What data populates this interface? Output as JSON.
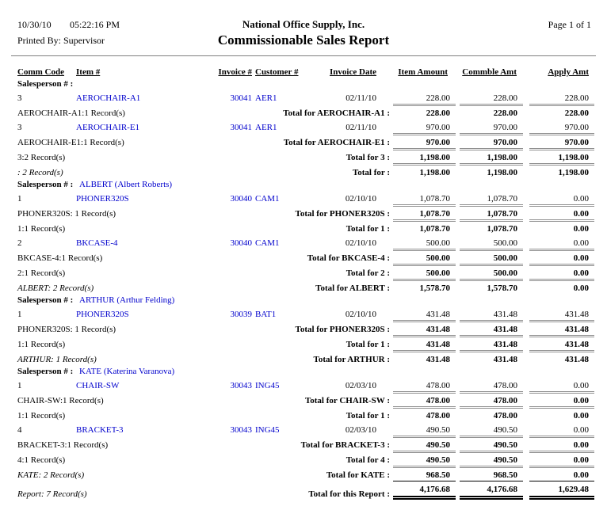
{
  "report": {
    "date": "10/30/10",
    "time": "05:22:16 PM",
    "printed_by": "Printed By: Supervisor",
    "company": "National Office Supply, Inc.",
    "title": "Commissionable Sales Report",
    "page_info": "Page 1 of 1"
  },
  "colors": {
    "link_blue": "#0000CC",
    "total_rule_gray": "#8f8f8f",
    "grand_rule_black": "#000000"
  },
  "columns": {
    "comm_code": "Comm Code",
    "item": "Item #",
    "invoice": "Invoice #",
    "customer": "Customer #",
    "invoice_date": "Invoice Date",
    "item_amount": "Item Amount",
    "commble_amt": "Commble Amt",
    "apply_amt": "Apply Amt"
  },
  "rows": [
    {
      "type": "sales",
      "label": "Salesperson # :",
      "name": ""
    },
    {
      "type": "detail",
      "comm": "3",
      "item": "AEROCHAIR-A1",
      "invoice": "30041",
      "customer": "AER1",
      "date": "02/11/10",
      "amounts": [
        "228.00",
        "228.00",
        "228.00"
      ]
    },
    {
      "type": "total",
      "record": "AEROCHAIR-A1:1 Record(s)",
      "italic": false,
      "label": "Total for AEROCHAIR-A1 :",
      "amounts": [
        "228.00",
        "228.00",
        "228.00"
      ]
    },
    {
      "type": "detail",
      "comm": "3",
      "item": "AEROCHAIR-E1",
      "invoice": "30041",
      "customer": "AER1",
      "date": "02/11/10",
      "amounts": [
        "970.00",
        "970.00",
        "970.00"
      ]
    },
    {
      "type": "total",
      "record": "AEROCHAIR-E1:1 Record(s)",
      "italic": false,
      "label": "Total for AEROCHAIR-E1 :",
      "amounts": [
        "970.00",
        "970.00",
        "970.00"
      ]
    },
    {
      "type": "total",
      "record": "3:2 Record(s)",
      "italic": false,
      "label": "Total for 3 :",
      "amounts": [
        "1,198.00",
        "1,198.00",
        "1,198.00"
      ]
    },
    {
      "type": "total",
      "record": ": 2 Record(s)",
      "italic": true,
      "label": "Total for :",
      "amounts": [
        "1,198.00",
        "1,198.00",
        "1,198.00"
      ]
    },
    {
      "type": "sales",
      "label": "Salesperson # :",
      "name": "ALBERT (Albert Roberts)"
    },
    {
      "type": "detail",
      "comm": "1",
      "item": "PHONER320S",
      "invoice": "30040",
      "customer": "CAM1",
      "date": "02/10/10",
      "amounts": [
        "1,078.70",
        "1,078.70",
        "0.00"
      ]
    },
    {
      "type": "total",
      "record": "PHONER320S: 1 Record(s)",
      "italic": false,
      "label": "Total for PHONER320S :",
      "amounts": [
        "1,078.70",
        "1,078.70",
        "0.00"
      ]
    },
    {
      "type": "total",
      "record": "1:1 Record(s)",
      "italic": false,
      "label": "Total for 1 :",
      "amounts": [
        "1,078.70",
        "1,078.70",
        "0.00"
      ]
    },
    {
      "type": "detail",
      "comm": "2",
      "item": "BKCASE-4",
      "invoice": "30040",
      "customer": "CAM1",
      "date": "02/10/10",
      "amounts": [
        "500.00",
        "500.00",
        "0.00"
      ]
    },
    {
      "type": "total",
      "record": "BKCASE-4:1 Record(s)",
      "italic": false,
      "label": "Total for BKCASE-4 :",
      "amounts": [
        "500.00",
        "500.00",
        "0.00"
      ]
    },
    {
      "type": "total",
      "record": "2:1 Record(s)",
      "italic": false,
      "label": "Total for 2 :",
      "amounts": [
        "500.00",
        "500.00",
        "0.00"
      ]
    },
    {
      "type": "total",
      "record": "ALBERT: 2 Record(s)",
      "italic": true,
      "label": "Total for ALBERT :",
      "amounts": [
        "1,578.70",
        "1,578.70",
        "0.00"
      ]
    },
    {
      "type": "sales",
      "label": "Salesperson # :",
      "name": "ARTHUR (Arthur Felding)"
    },
    {
      "type": "detail",
      "comm": "1",
      "item": "PHONER320S",
      "invoice": "30039",
      "customer": "BAT1",
      "date": "02/10/10",
      "amounts": [
        "431.48",
        "431.48",
        "431.48"
      ]
    },
    {
      "type": "total",
      "record": "PHONER320S: 1 Record(s)",
      "italic": false,
      "label": "Total for PHONER320S :",
      "amounts": [
        "431.48",
        "431.48",
        "431.48"
      ]
    },
    {
      "type": "total",
      "record": "1:1 Record(s)",
      "italic": false,
      "label": "Total for 1 :",
      "amounts": [
        "431.48",
        "431.48",
        "431.48"
      ]
    },
    {
      "type": "total",
      "record": "ARTHUR: 1 Record(s)",
      "italic": true,
      "label": "Total for ARTHUR :",
      "amounts": [
        "431.48",
        "431.48",
        "431.48"
      ]
    },
    {
      "type": "sales",
      "label": "Salesperson # :",
      "name": "KATE (Katerina Varanova)"
    },
    {
      "type": "detail",
      "comm": "1",
      "item": "CHAIR-SW",
      "invoice": "30043",
      "customer": "ING45",
      "date": "02/03/10",
      "amounts": [
        "478.00",
        "478.00",
        "0.00"
      ]
    },
    {
      "type": "total",
      "record": "CHAIR-SW:1 Record(s)",
      "italic": false,
      "label": "Total for CHAIR-SW :",
      "amounts": [
        "478.00",
        "478.00",
        "0.00"
      ]
    },
    {
      "type": "total",
      "record": "1:1 Record(s)",
      "italic": false,
      "label": "Total for 1 :",
      "amounts": [
        "478.00",
        "478.00",
        "0.00"
      ]
    },
    {
      "type": "detail",
      "comm": "4",
      "item": "BRACKET-3",
      "invoice": "30043",
      "customer": "ING45",
      "date": "02/03/10",
      "amounts": [
        "490.50",
        "490.50",
        "0.00"
      ]
    },
    {
      "type": "total",
      "record": "BRACKET-3:1 Record(s)",
      "italic": false,
      "label": "Total for BRACKET-3 :",
      "amounts": [
        "490.50",
        "490.50",
        "0.00"
      ]
    },
    {
      "type": "total",
      "record": "4:1 Record(s)",
      "italic": false,
      "label": "Total for 4 :",
      "amounts": [
        "490.50",
        "490.50",
        "0.00"
      ]
    },
    {
      "type": "total",
      "record": "KATE: 2 Record(s)",
      "italic": true,
      "label": "Total for KATE :",
      "amounts": [
        "968.50",
        "968.50",
        "0.00"
      ]
    },
    {
      "type": "total",
      "grand": true,
      "record": "Report: 7 Record(s)",
      "italic": true,
      "label": "Total for this Report :",
      "amounts": [
        "4,176.68",
        "4,176.68",
        "1,629.48"
      ]
    }
  ]
}
